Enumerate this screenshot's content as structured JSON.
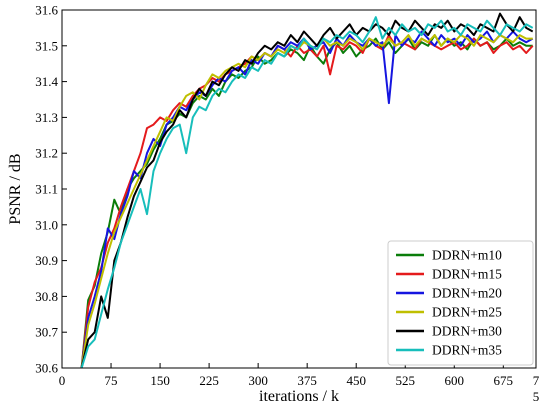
{
  "chart_data": {
    "type": "line",
    "xlabel": "iterations / k",
    "ylabel": "PSNR / dB",
    "xlim": [
      0,
      725
    ],
    "ylim": [
      30.6,
      31.6
    ],
    "xticks": [
      0,
      75,
      150,
      225,
      300,
      375,
      450,
      525,
      600,
      675,
      725
    ],
    "xtick_labels": [
      "0",
      "75",
      "150",
      "225",
      "300",
      "375",
      "450",
      "525",
      "600",
      "675",
      "7\n5"
    ],
    "yticks": [
      30.6,
      30.7,
      30.8,
      30.9,
      31.0,
      31.1,
      31.2,
      31.3,
      31.4,
      31.5,
      31.6
    ],
    "ytick_labels": [
      "30.6",
      "30.7",
      "30.8",
      "30.9",
      "31.0",
      "31.1",
      "31.2",
      "31.3",
      "31.4",
      "31.5",
      "31.6"
    ],
    "grid": false,
    "legend": "lower-right",
    "series": [
      {
        "name": "DDRN+m10",
        "color": "#0a7d0a",
        "x": [
          30,
          40,
          50,
          60,
          70,
          80,
          90,
          100,
          110,
          120,
          130,
          140,
          150,
          160,
          170,
          180,
          190,
          200,
          210,
          220,
          230,
          240,
          250,
          260,
          270,
          280,
          290,
          300,
          310,
          320,
          330,
          340,
          350,
          360,
          370,
          380,
          390,
          400,
          410,
          420,
          430,
          440,
          450,
          460,
          470,
          480,
          490,
          500,
          510,
          520,
          530,
          540,
          550,
          560,
          570,
          580,
          590,
          600,
          610,
          620,
          630,
          640,
          650,
          660,
          670,
          680,
          690,
          700,
          710,
          720
        ],
        "y": [
          30.6,
          30.79,
          30.83,
          30.92,
          30.98,
          31.07,
          31.03,
          31.1,
          31.13,
          31.15,
          31.17,
          31.21,
          31.24,
          31.28,
          31.29,
          31.31,
          31.3,
          31.34,
          31.36,
          31.35,
          31.38,
          31.36,
          31.4,
          31.42,
          31.41,
          31.43,
          31.44,
          31.47,
          31.45,
          31.46,
          31.48,
          31.47,
          31.49,
          31.48,
          31.46,
          31.5,
          31.47,
          31.45,
          31.49,
          31.51,
          31.48,
          31.5,
          31.47,
          31.49,
          31.5,
          31.52,
          31.49,
          31.51,
          31.48,
          31.5,
          31.52,
          31.49,
          31.51,
          31.5,
          31.53,
          31.5,
          31.52,
          31.5,
          31.51,
          31.49,
          31.52,
          31.5,
          31.51,
          31.49,
          31.5,
          31.52,
          31.5,
          31.51,
          31.5,
          31.5
        ]
      },
      {
        "name": "DDRN+m15",
        "color": "#e41a1c",
        "x": [
          30,
          40,
          50,
          60,
          70,
          80,
          90,
          100,
          110,
          120,
          130,
          140,
          150,
          160,
          170,
          180,
          190,
          200,
          210,
          220,
          230,
          240,
          250,
          260,
          270,
          280,
          290,
          300,
          310,
          320,
          330,
          340,
          350,
          360,
          370,
          380,
          390,
          400,
          410,
          420,
          430,
          440,
          450,
          460,
          470,
          480,
          490,
          500,
          510,
          520,
          530,
          540,
          550,
          560,
          570,
          580,
          590,
          600,
          610,
          620,
          630,
          640,
          650,
          660,
          670,
          680,
          690,
          700,
          710,
          720
        ],
        "y": [
          30.6,
          30.77,
          30.84,
          30.88,
          30.95,
          30.99,
          31.05,
          31.1,
          31.15,
          31.2,
          31.27,
          31.28,
          31.3,
          31.29,
          31.32,
          31.34,
          31.33,
          31.36,
          31.38,
          31.39,
          31.41,
          31.4,
          31.42,
          31.43,
          31.44,
          31.45,
          31.47,
          31.46,
          31.48,
          31.47,
          31.5,
          31.49,
          31.47,
          31.5,
          31.48,
          31.49,
          31.47,
          31.5,
          31.42,
          31.5,
          31.49,
          31.51,
          31.5,
          31.48,
          31.52,
          31.5,
          31.49,
          31.53,
          31.5,
          31.51,
          31.5,
          31.49,
          31.52,
          31.51,
          31.5,
          31.49,
          31.5,
          31.51,
          31.49,
          31.5,
          31.52,
          31.5,
          31.51,
          31.48,
          31.5,
          31.51,
          31.49,
          31.5,
          31.48,
          31.5
        ]
      },
      {
        "name": "DDRN+m20",
        "color": "#1515e0",
        "x": [
          30,
          40,
          50,
          60,
          70,
          80,
          90,
          100,
          110,
          120,
          130,
          140,
          150,
          160,
          170,
          180,
          190,
          200,
          210,
          220,
          230,
          240,
          250,
          260,
          270,
          280,
          290,
          300,
          310,
          320,
          330,
          340,
          350,
          360,
          370,
          380,
          390,
          400,
          410,
          420,
          430,
          440,
          450,
          460,
          470,
          480,
          490,
          500,
          510,
          520,
          530,
          540,
          550,
          560,
          570,
          580,
          590,
          600,
          610,
          620,
          630,
          640,
          650,
          660,
          670,
          680,
          690,
          700,
          710,
          720
        ],
        "y": [
          30.6,
          30.74,
          30.8,
          30.87,
          30.99,
          30.96,
          31.03,
          31.08,
          31.15,
          31.13,
          31.2,
          31.24,
          31.22,
          31.28,
          31.3,
          31.33,
          31.32,
          31.35,
          31.37,
          31.36,
          31.39,
          31.41,
          31.4,
          31.43,
          31.44,
          31.42,
          31.46,
          31.45,
          31.48,
          31.47,
          31.5,
          31.49,
          31.51,
          31.5,
          31.52,
          31.49,
          31.5,
          31.51,
          31.48,
          31.52,
          31.5,
          31.53,
          31.51,
          31.5,
          31.52,
          31.5,
          31.51,
          31.34,
          31.53,
          31.5,
          31.52,
          31.51,
          31.54,
          31.52,
          31.5,
          31.53,
          31.51,
          31.52,
          31.5,
          31.53,
          31.51,
          31.52,
          31.54,
          31.51,
          31.53,
          31.52,
          31.54,
          31.52,
          31.51,
          31.52
        ]
      },
      {
        "name": "DDRN+m25",
        "color": "#bfbf00",
        "x": [
          30,
          40,
          50,
          60,
          70,
          80,
          90,
          100,
          110,
          120,
          130,
          140,
          150,
          160,
          170,
          180,
          190,
          200,
          210,
          220,
          230,
          240,
          250,
          260,
          270,
          280,
          290,
          300,
          310,
          320,
          330,
          340,
          350,
          360,
          370,
          380,
          390,
          400,
          410,
          420,
          430,
          440,
          450,
          460,
          470,
          480,
          490,
          500,
          510,
          520,
          530,
          540,
          550,
          560,
          570,
          580,
          590,
          600,
          610,
          620,
          630,
          640,
          650,
          660,
          670,
          680,
          690,
          700,
          710,
          720
        ],
        "y": [
          30.6,
          30.72,
          30.78,
          30.85,
          30.92,
          30.98,
          31.02,
          31.06,
          31.1,
          31.14,
          31.18,
          31.22,
          31.26,
          31.3,
          31.29,
          31.33,
          31.36,
          31.37,
          31.35,
          31.39,
          31.42,
          31.41,
          31.43,
          31.44,
          31.45,
          31.44,
          31.47,
          31.46,
          31.48,
          31.47,
          31.49,
          31.48,
          31.5,
          31.49,
          31.51,
          31.5,
          31.49,
          31.52,
          31.5,
          31.51,
          31.5,
          31.52,
          31.51,
          31.49,
          31.52,
          31.51,
          31.5,
          31.52,
          31.5,
          31.51,
          31.53,
          31.5,
          31.52,
          31.51,
          31.53,
          31.5,
          31.52,
          31.51,
          31.53,
          31.52,
          31.5,
          31.53,
          31.52,
          31.51,
          31.53,
          31.52,
          31.51,
          31.53,
          31.52,
          31.52
        ]
      },
      {
        "name": "DDRN+m30",
        "color": "#000000",
        "x": [
          30,
          40,
          50,
          60,
          70,
          80,
          90,
          100,
          110,
          120,
          130,
          140,
          150,
          160,
          170,
          180,
          190,
          200,
          210,
          220,
          230,
          240,
          250,
          260,
          270,
          280,
          290,
          300,
          310,
          320,
          330,
          340,
          350,
          360,
          370,
          380,
          390,
          400,
          410,
          420,
          430,
          440,
          450,
          460,
          470,
          480,
          490,
          500,
          510,
          520,
          530,
          540,
          550,
          560,
          570,
          580,
          590,
          600,
          610,
          620,
          630,
          640,
          650,
          660,
          670,
          680,
          690,
          700,
          710,
          720
        ],
        "y": [
          30.6,
          30.68,
          30.7,
          30.8,
          30.74,
          30.9,
          30.95,
          31.02,
          31.08,
          31.12,
          31.16,
          31.18,
          31.23,
          31.26,
          31.28,
          31.32,
          31.3,
          31.35,
          31.38,
          31.36,
          31.4,
          31.39,
          31.42,
          31.44,
          31.43,
          31.46,
          31.45,
          31.48,
          31.5,
          31.49,
          31.51,
          31.5,
          31.53,
          31.51,
          31.54,
          31.52,
          31.5,
          31.53,
          31.55,
          31.52,
          31.54,
          31.56,
          31.53,
          31.55,
          31.54,
          31.56,
          31.55,
          31.53,
          31.57,
          31.55,
          31.54,
          31.57,
          31.55,
          31.53,
          31.56,
          31.55,
          31.57,
          31.54,
          31.56,
          31.55,
          31.53,
          31.56,
          31.55,
          31.54,
          31.59,
          31.56,
          31.54,
          31.58,
          31.55,
          31.54
        ]
      },
      {
        "name": "DDRN+m35",
        "color": "#17bebb",
        "x": [
          30,
          40,
          50,
          60,
          70,
          80,
          90,
          100,
          110,
          120,
          130,
          140,
          150,
          160,
          170,
          180,
          190,
          200,
          210,
          220,
          230,
          240,
          250,
          260,
          270,
          280,
          290,
          300,
          310,
          320,
          330,
          340,
          350,
          360,
          370,
          380,
          390,
          400,
          410,
          420,
          430,
          440,
          450,
          460,
          470,
          480,
          490,
          500,
          510,
          520,
          530,
          540,
          550,
          560,
          570,
          580,
          590,
          600,
          610,
          620,
          630,
          640,
          650,
          660,
          670,
          680,
          690,
          700,
          710,
          720
        ],
        "y": [
          30.6,
          30.66,
          30.68,
          30.75,
          30.82,
          30.88,
          30.95,
          31.0,
          31.05,
          31.1,
          31.03,
          31.15,
          31.2,
          31.24,
          31.27,
          31.28,
          31.2,
          31.3,
          31.33,
          31.32,
          31.36,
          31.38,
          31.37,
          31.4,
          31.42,
          31.41,
          31.44,
          31.43,
          31.46,
          31.45,
          31.48,
          31.47,
          31.5,
          31.49,
          31.52,
          31.5,
          31.49,
          31.52,
          31.51,
          31.53,
          31.52,
          31.54,
          31.53,
          31.51,
          31.54,
          31.58,
          31.52,
          31.55,
          31.53,
          31.56,
          31.54,
          31.55,
          31.53,
          31.56,
          31.55,
          31.57,
          31.54,
          31.55,
          31.53,
          31.56,
          31.55,
          31.54,
          31.57,
          31.55,
          31.53,
          31.56,
          31.55,
          31.54,
          31.56,
          31.55
        ]
      }
    ]
  }
}
